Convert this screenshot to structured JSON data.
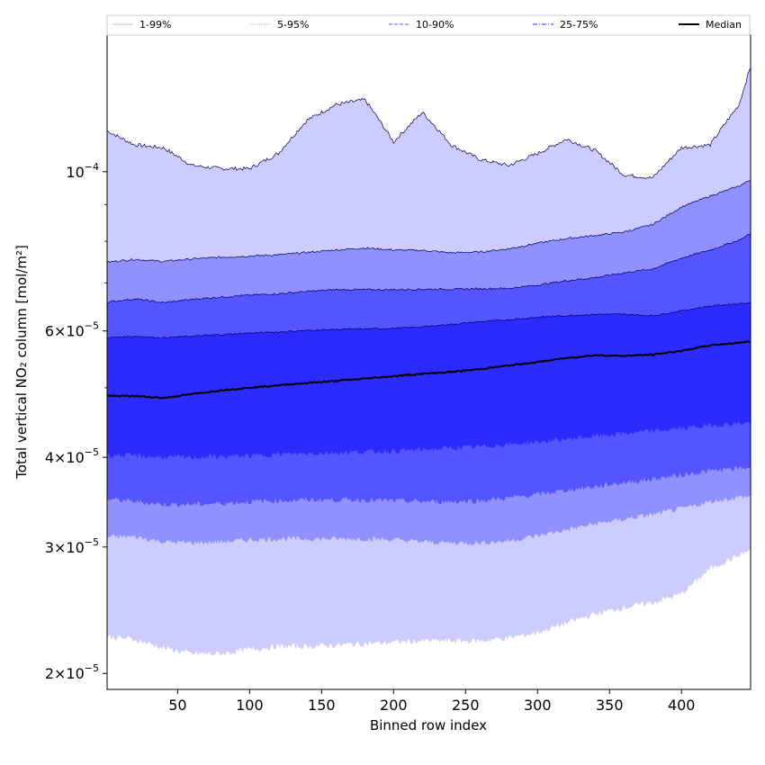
{
  "chart_data": {
    "type": "area",
    "title": "",
    "xlabel": "Binned row index",
    "ylabel": "Total vertical NO₂ column [mol/m²]",
    "xlim": [
      1,
      448
    ],
    "ylim": [
      1.9e-05,
      0.000155
    ],
    "yscale": "log",
    "xticks": [
      50,
      100,
      150,
      200,
      250,
      300,
      350,
      400
    ],
    "xtick_labels": [
      "50",
      "100",
      "150",
      "200",
      "250",
      "300",
      "350",
      "400"
    ],
    "yticks": [
      2e-05,
      3e-05,
      4e-05,
      6e-05,
      0.0001
    ],
    "ytick_labels": [
      {
        "base": "2×10",
        "exp": "−5"
      },
      {
        "base": "3×10",
        "exp": "−5"
      },
      {
        "base": "4×10",
        "exp": "−5"
      },
      {
        "base": "6×10",
        "exp": "−5"
      },
      {
        "base": "10",
        "exp": "−4"
      }
    ],
    "x": [
      1,
      20,
      40,
      60,
      80,
      100,
      120,
      140,
      160,
      180,
      200,
      220,
      240,
      260,
      280,
      300,
      320,
      340,
      360,
      380,
      400,
      420,
      440,
      448
    ],
    "bands": [
      {
        "name": "1-99%",
        "color": "#ccccff",
        "lower": [
          2.25e-05,
          2.23e-05,
          2.17e-05,
          2.13e-05,
          2.13e-05,
          2.16e-05,
          2.18e-05,
          2.18e-05,
          2.19e-05,
          2.2e-05,
          2.21e-05,
          2.22e-05,
          2.22e-05,
          2.22e-05,
          2.24e-05,
          2.28e-05,
          2.35e-05,
          2.42e-05,
          2.47e-05,
          2.51e-05,
          2.58e-05,
          2.8e-05,
          2.92e-05,
          2.97e-05
        ],
        "upper": [
          0.000114,
          0.000109,
          0.000108,
          0.000102,
          0.000101,
          0.000101,
          0.000106,
          0.000118,
          0.000124,
          0.000126,
          0.00011,
          0.000121,
          0.000109,
          0.000104,
          0.000102,
          0.000106,
          0.000111,
          0.000107,
          9.9e-05,
          9.8e-05,
          0.000108,
          0.000109,
          0.000124,
          0.00014
        ]
      },
      {
        "name": "5-95%",
        "color": "#9090ff",
        "lower": [
          3.1e-05,
          3.1e-05,
          3.05e-05,
          3.04e-05,
          3.05e-05,
          3.07e-05,
          3.08e-05,
          3.08e-05,
          3.08e-05,
          3.08e-05,
          3.07e-05,
          3.05e-05,
          3.04e-05,
          3.04e-05,
          3.06e-05,
          3.11e-05,
          3.17e-05,
          3.23e-05,
          3.28e-05,
          3.33e-05,
          3.39e-05,
          3.47e-05,
          3.52e-05,
          3.53e-05
        ]
      },
      {
        "name": "10-90%",
        "color": "#5555ff",
        "lower": [
          3.5e-05,
          3.47e-05,
          3.44e-05,
          3.44e-05,
          3.45e-05,
          3.47e-05,
          3.48e-05,
          3.49e-05,
          3.49e-05,
          3.49e-05,
          3.48e-05,
          3.47e-05,
          3.47e-05,
          3.48e-05,
          3.51e-05,
          3.55e-05,
          3.6e-05,
          3.64e-05,
          3.69e-05,
          3.73e-05,
          3.78e-05,
          3.83e-05,
          3.86e-05,
          3.87e-05
        ]
      },
      {
        "name": "25-75%",
        "color": "#2b2bff",
        "lower": [
          4.03e-05,
          4.02e-05,
          4e-05,
          4e-05,
          4.01e-05,
          4.02e-05,
          4.04e-05,
          4.05e-05,
          4.06e-05,
          4.07e-05,
          4.08e-05,
          4.1e-05,
          4.12e-05,
          4.14e-05,
          4.17e-05,
          4.2e-05,
          4.24e-05,
          4.28e-05,
          4.32e-05,
          4.35e-05,
          4.39e-05,
          4.43e-05,
          4.46e-05,
          4.47e-05
        ],
        "upper": [
          5.87e-05,
          5.9e-05,
          5.87e-05,
          5.9e-05,
          5.93e-05,
          5.96e-05,
          5.98e-05,
          6.01e-05,
          6.03e-05,
          6.04e-05,
          6.05e-05,
          6.08e-05,
          6.13e-05,
          6.18e-05,
          6.22e-05,
          6.27e-05,
          6.3e-05,
          6.33e-05,
          6.33e-05,
          6.3e-05,
          6.4e-05,
          6.5e-05,
          6.55e-05,
          6.57e-05
        ]
      }
    ],
    "upper_lines": [
      {
        "name": "5-95%",
        "values": [
          7.48e-05,
          7.55e-05,
          7.5e-05,
          7.56e-05,
          7.6e-05,
          7.63e-05,
          7.66e-05,
          7.72e-05,
          7.78e-05,
          7.83e-05,
          7.78e-05,
          7.77e-05,
          7.71e-05,
          7.73e-05,
          7.81e-05,
          7.95e-05,
          8.07e-05,
          8.15e-05,
          8.24e-05,
          8.44e-05,
          8.93e-05,
          9.25e-05,
          9.55e-05,
          9.74e-05
        ]
      },
      {
        "name": "10-90%",
        "values": [
          6.58e-05,
          6.65e-05,
          6.57e-05,
          6.64e-05,
          6.69e-05,
          6.73e-05,
          6.76e-05,
          6.81e-05,
          6.85e-05,
          6.85e-05,
          6.85e-05,
          6.86e-05,
          6.86e-05,
          6.87e-05,
          6.88e-05,
          6.95e-05,
          7.05e-05,
          7.12e-05,
          7.23e-05,
          7.32e-05,
          7.58e-05,
          7.78e-05,
          8.03e-05,
          8.2e-05
        ]
      }
    ],
    "median": [
      4.87e-05,
      4.87e-05,
      4.84e-05,
      4.9e-05,
      4.96e-05,
      5e-05,
      5.04e-05,
      5.08e-05,
      5.11e-05,
      5.15e-05,
      5.19e-05,
      5.23e-05,
      5.26e-05,
      5.31e-05,
      5.37e-05,
      5.43e-05,
      5.5e-05,
      5.55e-05,
      5.54e-05,
      5.56e-05,
      5.63e-05,
      5.73e-05,
      5.78e-05,
      5.8e-05
    ],
    "legend": {
      "position": "top",
      "entries": [
        {
          "label": "1-99%",
          "color": "#ccccff",
          "style": "solid"
        },
        {
          "label": "5-95%",
          "color": "#9090ff",
          "style": "dotted"
        },
        {
          "label": "10-90%",
          "color": "#5555ff",
          "style": "dashed"
        },
        {
          "label": "25-75%",
          "color": "#2b2bff",
          "style": "dashdot"
        },
        {
          "label": "Median",
          "color": "#000000",
          "style": "solid-thick"
        }
      ]
    },
    "grid": false
  }
}
